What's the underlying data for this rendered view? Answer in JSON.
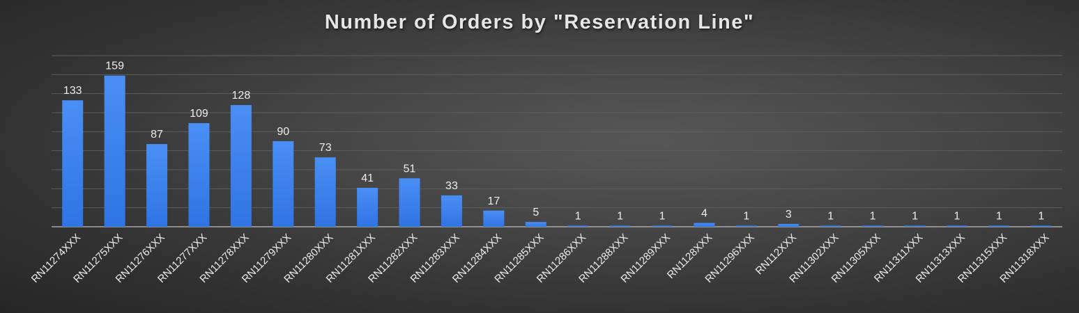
{
  "chart_data": {
    "type": "bar",
    "title": "Number of Orders by \"Reservation Line\"",
    "categories": [
      "RN11274XXX",
      "RN11275XXX",
      "RN11276XXX",
      "RN11277XXX",
      "RN11278XXX",
      "RN11279XXX",
      "RN11280XXX",
      "RN11281XXX",
      "RN11282XXX",
      "RN11283XXX",
      "RN11284XXX",
      "RN11285XXX",
      "RN11286XXX",
      "RN11288XXX",
      "RN11289XXX",
      "RN1128XXX",
      "RN11296XXX",
      "RN112XXX",
      "RN11302XXX",
      "RN11305XXX",
      "RN11311XXX",
      "RN11313XXX",
      "RN11315XXX",
      "RN11318XXX"
    ],
    "values": [
      133,
      159,
      87,
      109,
      128,
      90,
      73,
      41,
      51,
      33,
      17,
      5,
      1,
      1,
      1,
      4,
      1,
      3,
      1,
      1,
      1,
      1,
      1,
      1
    ],
    "xlabel": "",
    "ylabel": "",
    "ylim": [
      0,
      180
    ],
    "grid": true,
    "legend": "none",
    "data_labels": true,
    "bar_color": "#3f86f0"
  }
}
